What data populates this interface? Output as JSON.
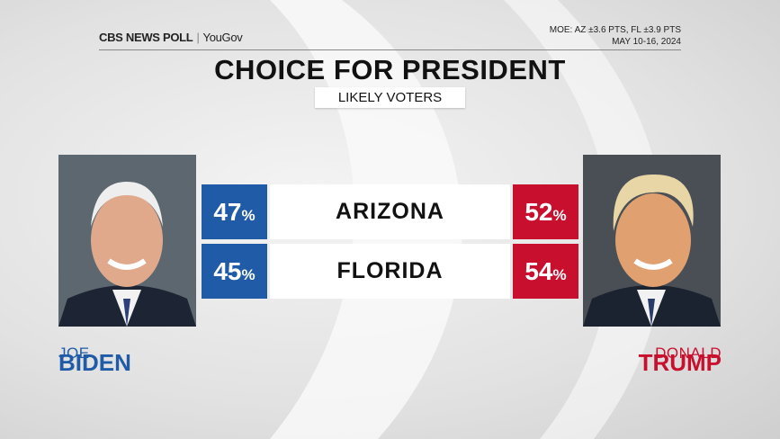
{
  "header": {
    "logo": "CBS NEWS POLL",
    "partner": "YouGov",
    "moe": "MOE: AZ ±3.6 PTS, FL ±3.9 PTS",
    "dates": "MAY 10-16, 2024",
    "title": "CHOICE FOR PRESIDENT",
    "subtitle": "LIKELY VOTERS"
  },
  "candidates": [
    {
      "first": "JOE",
      "last": "BIDEN",
      "color": "#1f5ba6"
    },
    {
      "first": "DONALD",
      "last": "TRUMP",
      "color": "#c8102e"
    }
  ],
  "table": {
    "rows": [
      [
        "47%",
        "ARIZONA",
        "52%"
      ],
      [
        "45%",
        "FLORIDA",
        "54%"
      ]
    ]
  }
}
